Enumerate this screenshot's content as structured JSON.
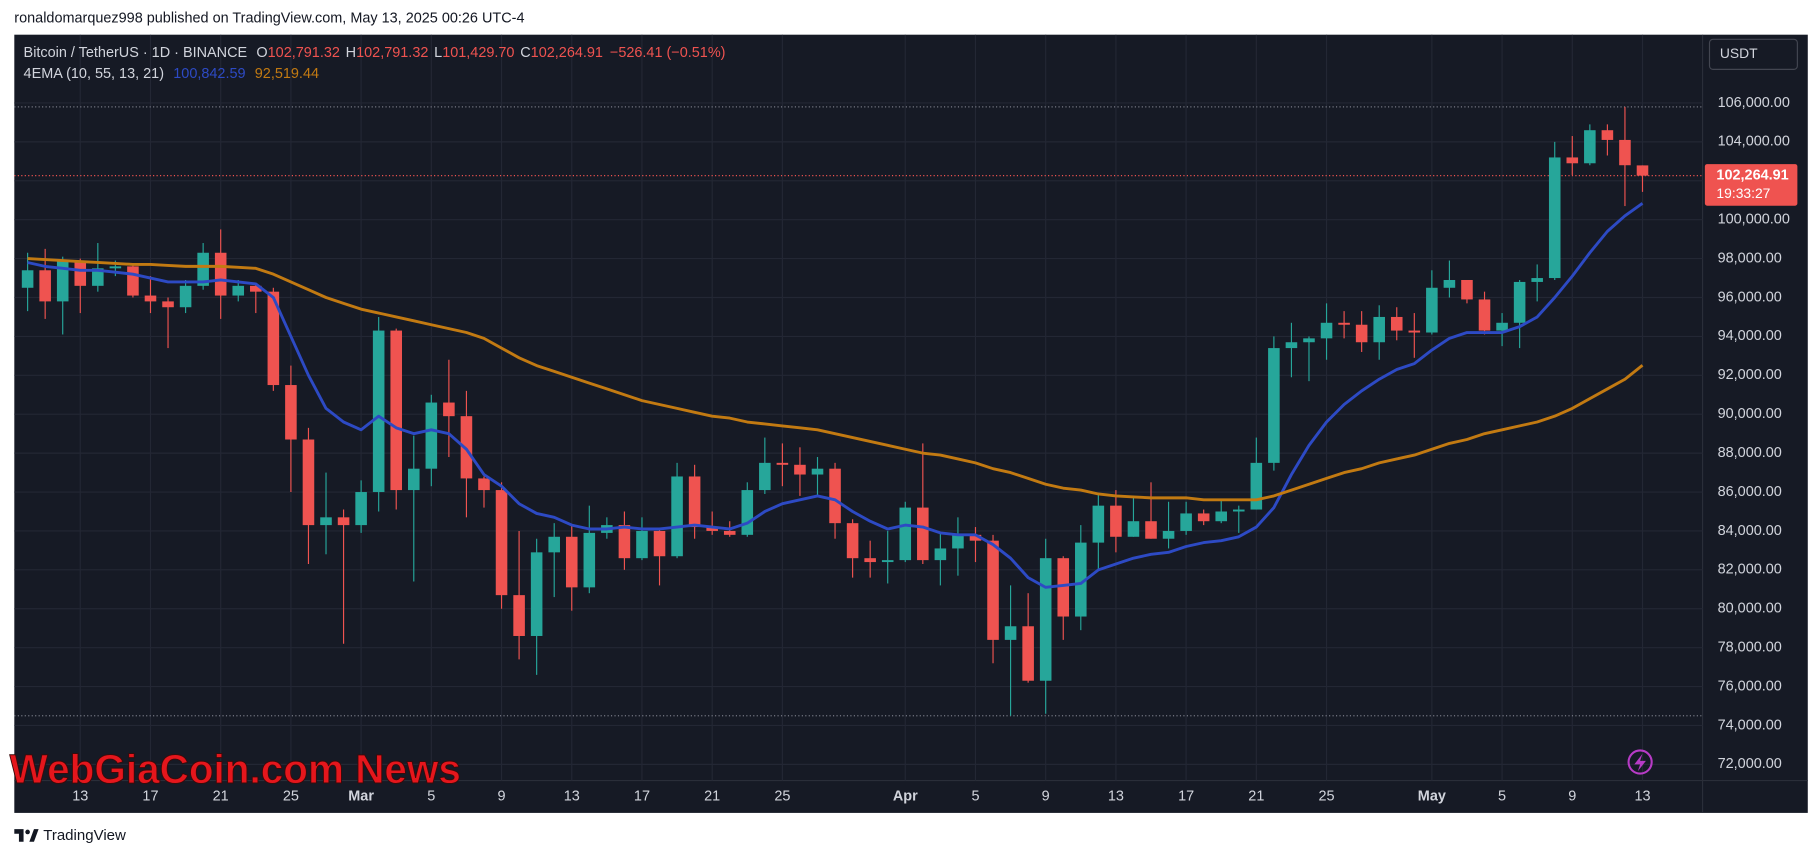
{
  "header": {
    "byline": "ronaldomarquez998 published on TradingView.com, May 13, 2025 00:26 UTC-4"
  },
  "footer": {
    "brand": "TradingView"
  },
  "watermark": "WebGiaCoin.com News",
  "currency_button": "USDT",
  "chart_data": {
    "type": "candlestick",
    "symbol": "Bitcoin / TetherUS · 1D · BINANCE",
    "legend": [
      {
        "key": "O",
        "value": "102,791.32"
      },
      {
        "key": "H",
        "value": "102,791.32"
      },
      {
        "key": "L",
        "value": "101,429.70"
      },
      {
        "key": "C",
        "value": "102,264.91"
      }
    ],
    "change": "−526.41 (−0.51%)",
    "indicator": "4EMA (10, 55, 13, 21)",
    "last_price_label": "102,264.91",
    "countdown": "19:33:27",
    "up_color": "#26a69a",
    "down_color": "#ef5350",
    "categories": [
      null,
      null,
      null,
      "13",
      null,
      null,
      null,
      "17",
      null,
      null,
      null,
      "21",
      null,
      null,
      null,
      "25",
      null,
      null,
      null,
      "Mar",
      null,
      null,
      null,
      "5",
      null,
      null,
      null,
      "9",
      null,
      null,
      null,
      "13",
      null,
      null,
      null,
      "17",
      null,
      null,
      null,
      "21",
      null,
      null,
      null,
      "25",
      null,
      null,
      null,
      null,
      null,
      null,
      "Apr",
      null,
      null,
      null,
      "5",
      null,
      null,
      null,
      "9",
      null,
      null,
      null,
      "13",
      null,
      null,
      null,
      "17",
      null,
      null,
      null,
      "21",
      null,
      null,
      null,
      "25",
      null,
      null,
      null,
      null,
      null,
      "May",
      null,
      null,
      null,
      "5",
      null,
      null,
      null,
      "9",
      null,
      null,
      null,
      "13"
    ],
    "open": [
      96500,
      97400,
      95800,
      97900,
      96600,
      97500,
      97600,
      96100,
      95800,
      95500,
      96600,
      98300,
      96100,
      96600,
      96300,
      91500,
      88700,
      84300,
      84700,
      84300,
      86000,
      94300,
      86100,
      87200,
      90600,
      89900,
      86700,
      86100,
      80700,
      78600,
      82900,
      83700,
      81100,
      83900,
      84300,
      82600,
      84000,
      82700,
      86800,
      84200,
      84000,
      83800,
      86100,
      87500,
      87400,
      86900,
      87200,
      84400,
      82600,
      82400,
      82500,
      85200,
      82500,
      83100,
      83800,
      83500,
      78400,
      79100,
      76300,
      82600,
      79600,
      83400,
      85300,
      83700,
      84500,
      83600,
      84000,
      84900,
      84500,
      85000,
      85100,
      87500,
      93400,
      93700,
      93900,
      94700,
      94600,
      93700,
      95000,
      94300,
      94200,
      96500,
      96900,
      95900,
      94300,
      94700,
      96800,
      97000,
      103200,
      102900,
      104600,
      104100,
      102791.32
    ],
    "high": [
      98300,
      98500,
      98100,
      98000,
      98800,
      97900,
      97700,
      97100,
      96000,
      96900,
      98800,
      99500,
      96900,
      96700,
      96500,
      92500,
      89300,
      87000,
      85100,
      86600,
      95000,
      94400,
      88900,
      91000,
      92800,
      91200,
      86800,
      86500,
      84000,
      83600,
      84400,
      84300,
      85300,
      84700,
      85000,
      84700,
      84100,
      87500,
      87400,
      85000,
      84500,
      86500,
      88800,
      88500,
      88300,
      87800,
      87500,
      84600,
      83500,
      84000,
      85500,
      88500,
      83900,
      84700,
      84200,
      83800,
      81200,
      80800,
      83600,
      82700,
      84300,
      85900,
      86100,
      85800,
      86500,
      85500,
      85500,
      85100,
      85600,
      85300,
      88800,
      94000,
      94700,
      94000,
      95700,
      95300,
      95300,
      95600,
      95500,
      95200,
      97400,
      97900,
      96900,
      96300,
      95200,
      96900,
      97700,
      104000,
      104300,
      104900,
      104900,
      105800,
      102791.32
    ],
    "low": [
      95300,
      94900,
      94100,
      95200,
      96300,
      97100,
      96000,
      95200,
      93400,
      95200,
      96400,
      94900,
      95800,
      95200,
      91200,
      86000,
      82300,
      82800,
      78200,
      83900,
      85000,
      85100,
      81400,
      86300,
      87800,
      84700,
      85200,
      80000,
      77400,
      76600,
      80600,
      79900,
      80800,
      83600,
      82000,
      82500,
      81200,
      82600,
      83600,
      83800,
      83700,
      83700,
      85900,
      86300,
      85800,
      85800,
      83600,
      81600,
      81600,
      81300,
      82400,
      82300,
      81200,
      81700,
      82400,
      77200,
      74500,
      76200,
      74600,
      78400,
      78900,
      82000,
      82900,
      83700,
      83600,
      83100,
      83800,
      84300,
      84400,
      83900,
      85100,
      87100,
      91900,
      91700,
      92800,
      93900,
      93200,
      92800,
      93800,
      92900,
      94100,
      96000,
      95700,
      94100,
      93500,
      93400,
      95800,
      96900,
      102300,
      102800,
      103300,
      100700,
      101429.7
    ],
    "close": [
      97400,
      95800,
      97900,
      96600,
      97500,
      97600,
      96100,
      95800,
      95500,
      96600,
      98300,
      96100,
      96600,
      96300,
      91500,
      88700,
      84300,
      84700,
      84300,
      86000,
      94300,
      86100,
      87200,
      90600,
      89900,
      86700,
      86100,
      80700,
      78600,
      82900,
      83700,
      81100,
      83900,
      84300,
      82600,
      84000,
      82700,
      86800,
      84200,
      84000,
      83800,
      86100,
      87500,
      87400,
      86900,
      87200,
      84400,
      82600,
      82400,
      82500,
      85200,
      82500,
      83100,
      83800,
      83500,
      78400,
      79100,
      76300,
      82600,
      79600,
      83400,
      85300,
      83700,
      84500,
      83600,
      84000,
      84900,
      84500,
      85000,
      85100,
      87500,
      93400,
      93700,
      93900,
      94700,
      94600,
      93700,
      95000,
      94300,
      94200,
      96500,
      96900,
      95900,
      94300,
      94700,
      96800,
      97000,
      103200,
      102900,
      104600,
      104100,
      102800,
      102264.91
    ],
    "series": [
      {
        "color": "#2d4ac4",
        "last_label": "100,842.59",
        "values": [
          97800,
          97600,
          97500,
          97400,
          97400,
          97300,
          97200,
          97000,
          96800,
          96800,
          96800,
          96900,
          96800,
          96700,
          96000,
          94000,
          92000,
          90300,
          89600,
          89200,
          89900,
          89300,
          89000,
          89200,
          89000,
          88200,
          86900,
          86300,
          85400,
          84900,
          84700,
          84300,
          84100,
          84100,
          84200,
          84100,
          84100,
          84200,
          84300,
          84200,
          84100,
          84400,
          85000,
          85400,
          85600,
          85800,
          85600,
          85000,
          84500,
          84100,
          84300,
          84200,
          83900,
          83800,
          83800,
          83300,
          82600,
          81600,
          81100,
          81200,
          81300,
          82000,
          82300,
          82600,
          82800,
          82900,
          83200,
          83400,
          83500,
          83700,
          84200,
          85200,
          86900,
          88400,
          89600,
          90500,
          91200,
          91800,
          92300,
          92600,
          93300,
          93900,
          94200,
          94200,
          94200,
          94500,
          95000,
          96000,
          97100,
          98300,
          99400,
          100200,
          100842.59
        ]
      },
      {
        "color": "#c27a12",
        "last_label": "92,519.44",
        "values": [
          98000,
          97950,
          97900,
          97850,
          97800,
          97750,
          97700,
          97700,
          97650,
          97600,
          97600,
          97600,
          97550,
          97500,
          97200,
          96800,
          96400,
          96000,
          95700,
          95400,
          95200,
          95000,
          94800,
          94600,
          94400,
          94200,
          93900,
          93400,
          92900,
          92500,
          92200,
          91900,
          91600,
          91300,
          91000,
          90700,
          90500,
          90300,
          90100,
          89900,
          89800,
          89600,
          89500,
          89400,
          89300,
          89200,
          89000,
          88800,
          88600,
          88400,
          88200,
          88000,
          87900,
          87700,
          87500,
          87200,
          87000,
          86700,
          86400,
          86200,
          86100,
          85900,
          85800,
          85750,
          85700,
          85700,
          85700,
          85600,
          85600,
          85600,
          85600,
          85800,
          86100,
          86400,
          86700,
          87000,
          87200,
          87500,
          87700,
          87900,
          88200,
          88500,
          88700,
          89000,
          89200,
          89400,
          89600,
          89900,
          90300,
          90800,
          91300,
          91800,
          92519.44
        ]
      }
    ],
    "ylim": [
      71170,
      109510
    ],
    "yticks": [
      {
        "value": 106000,
        "label": "106,000.00"
      },
      {
        "value": 104000,
        "label": "104,000.00"
      },
      {
        "value": 102000,
        "label": "102,000.00"
      },
      {
        "value": 100000,
        "label": "100,000.00"
      },
      {
        "value": 98000,
        "label": "98,000.00"
      },
      {
        "value": 96000,
        "label": "96,000.00"
      },
      {
        "value": 94000,
        "label": "94,000.00"
      },
      {
        "value": 92000,
        "label": "92,000.00"
      },
      {
        "value": 90000,
        "label": "90,000.00"
      },
      {
        "value": 88000,
        "label": "88,000.00"
      },
      {
        "value": 86000,
        "label": "86,000.00"
      },
      {
        "value": 84000,
        "label": "84,000.00"
      },
      {
        "value": 82000,
        "label": "82,000.00"
      },
      {
        "value": 80000,
        "label": "80,000.00"
      },
      {
        "value": 78000,
        "label": "78,000.00"
      },
      {
        "value": 76000,
        "label": "76,000.00"
      },
      {
        "value": 74000,
        "label": "74,000.00"
      },
      {
        "value": 72000,
        "label": "72,000.00"
      }
    ],
    "grid": true
  }
}
